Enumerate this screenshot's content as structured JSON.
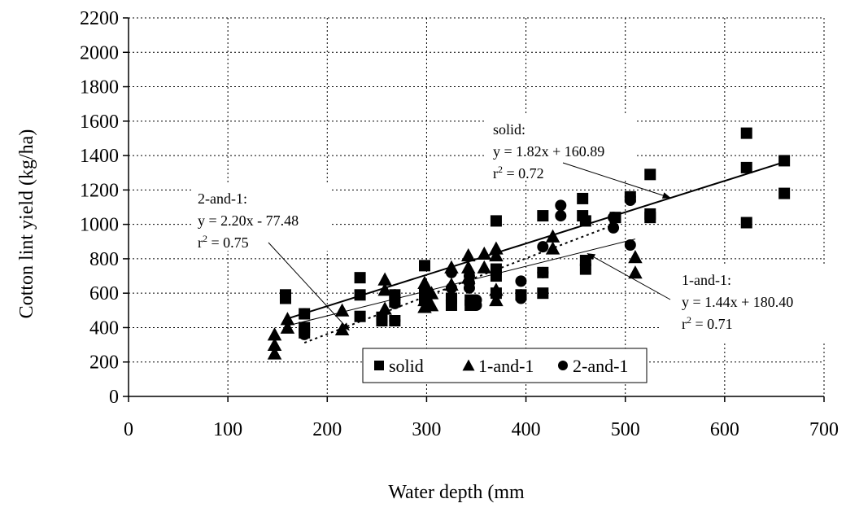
{
  "chart_data": {
    "type": "scatter",
    "xlabel": "Water depth (mm",
    "ylabel": "Cotton lint yield (kg/ha)",
    "xlim": [
      0,
      700
    ],
    "ylim": [
      0,
      2200
    ],
    "x_ticks": [
      "0",
      "100",
      "200",
      "300",
      "400",
      "500",
      "600",
      "700"
    ],
    "y_ticks": [
      "0",
      "200",
      "400",
      "600",
      "800",
      "1000",
      "1200",
      "1400",
      "1600",
      "1800",
      "2000",
      "2200"
    ],
    "grid": true,
    "legend_position": "bottom-center",
    "series": [
      {
        "name": "solid",
        "marker": "square",
        "color": "#000000",
        "points": [
          [
            158,
            590
          ],
          [
            158,
            570
          ],
          [
            177,
            480
          ],
          [
            177,
            400
          ],
          [
            177,
            370
          ],
          [
            233,
            690
          ],
          [
            233,
            590
          ],
          [
            233,
            465
          ],
          [
            255,
            460
          ],
          [
            255,
            440
          ],
          [
            268,
            590
          ],
          [
            268,
            550
          ],
          [
            268,
            440
          ],
          [
            298,
            760
          ],
          [
            298,
            600
          ],
          [
            298,
            560
          ],
          [
            325,
            570
          ],
          [
            325,
            530
          ],
          [
            344,
            560
          ],
          [
            344,
            530
          ],
          [
            370,
            1020
          ],
          [
            370,
            740
          ],
          [
            370,
            700
          ],
          [
            370,
            600
          ],
          [
            395,
            590
          ],
          [
            417,
            1050
          ],
          [
            417,
            720
          ],
          [
            417,
            600
          ],
          [
            457,
            1150
          ],
          [
            457,
            1050
          ],
          [
            460,
            1020
          ],
          [
            460,
            790
          ],
          [
            460,
            740
          ],
          [
            490,
            1040
          ],
          [
            505,
            1160
          ],
          [
            525,
            1290
          ],
          [
            525,
            1060
          ],
          [
            525,
            1040
          ],
          [
            622,
            1530
          ],
          [
            622,
            1330
          ],
          [
            622,
            1010
          ],
          [
            660,
            1370
          ],
          [
            660,
            1180
          ]
        ]
      },
      {
        "name": "1-and-1",
        "marker": "triangle",
        "color": "#000000",
        "points": [
          [
            147,
            360
          ],
          [
            147,
            300
          ],
          [
            147,
            250
          ],
          [
            160,
            450
          ],
          [
            160,
            400
          ],
          [
            215,
            500
          ],
          [
            215,
            390
          ],
          [
            258,
            680
          ],
          [
            258,
            620
          ],
          [
            258,
            510
          ],
          [
            298,
            660
          ],
          [
            298,
            560
          ],
          [
            298,
            520
          ],
          [
            305,
            600
          ],
          [
            305,
            530
          ],
          [
            325,
            750
          ],
          [
            325,
            650
          ],
          [
            342,
            820
          ],
          [
            342,
            750
          ],
          [
            342,
            690
          ],
          [
            358,
            830
          ],
          [
            358,
            750
          ],
          [
            370,
            860
          ],
          [
            370,
            820
          ],
          [
            370,
            620
          ],
          [
            370,
            560
          ],
          [
            427,
            930
          ],
          [
            427,
            860
          ],
          [
            510,
            810
          ],
          [
            510,
            720
          ]
        ]
      },
      {
        "name": "2-and-1",
        "marker": "circle",
        "color": "#000000",
        "points": [
          [
            177,
            480
          ],
          [
            177,
            390
          ],
          [
            177,
            360
          ],
          [
            268,
            590
          ],
          [
            268,
            540
          ],
          [
            268,
            440
          ],
          [
            300,
            570
          ],
          [
            300,
            520
          ],
          [
            325,
            720
          ],
          [
            325,
            630
          ],
          [
            325,
            560
          ],
          [
            343,
            700
          ],
          [
            343,
            660
          ],
          [
            343,
            630
          ],
          [
            350,
            560
          ],
          [
            350,
            530
          ],
          [
            395,
            670
          ],
          [
            395,
            590
          ],
          [
            395,
            570
          ],
          [
            417,
            870
          ],
          [
            417,
            720
          ],
          [
            435,
            1110
          ],
          [
            435,
            1050
          ],
          [
            488,
            1040
          ],
          [
            488,
            980
          ],
          [
            505,
            1160
          ],
          [
            505,
            1140
          ],
          [
            505,
            880
          ]
        ]
      }
    ],
    "trendlines": [
      {
        "series": "solid",
        "style": "solid",
        "width": 2,
        "slope": 1.82,
        "intercept": 160.89,
        "x_range": [
          158,
          660
        ]
      },
      {
        "series": "1-and-1",
        "style": "solid",
        "width": 1,
        "slope": 1.44,
        "intercept": 180.4,
        "x_range": [
          158,
          510
        ]
      },
      {
        "series": "2-and-1",
        "style": "dotted",
        "width": 2,
        "slope": 2.2,
        "intercept": -77.48,
        "x_range": [
          177,
          488
        ]
      }
    ],
    "annotations": [
      {
        "series": "solid",
        "lines": [
          "solid:",
          "y = 1.82x + 160.89",
          "r2 = 0.72"
        ],
        "arrow_to": [
          545,
          1155
        ]
      },
      {
        "series": "2-and-1",
        "lines": [
          "2-and-1:",
          "y = 2.20x - 77.48",
          "r2 = 0.75"
        ],
        "arrow_to": [
          222,
          385
        ]
      },
      {
        "series": "1-and-1",
        "lines": [
          "1-and-1:",
          "y = 1.44x + 180.40",
          "r2 = 0.71"
        ],
        "arrow_to": [
          462,
          830
        ]
      }
    ]
  }
}
